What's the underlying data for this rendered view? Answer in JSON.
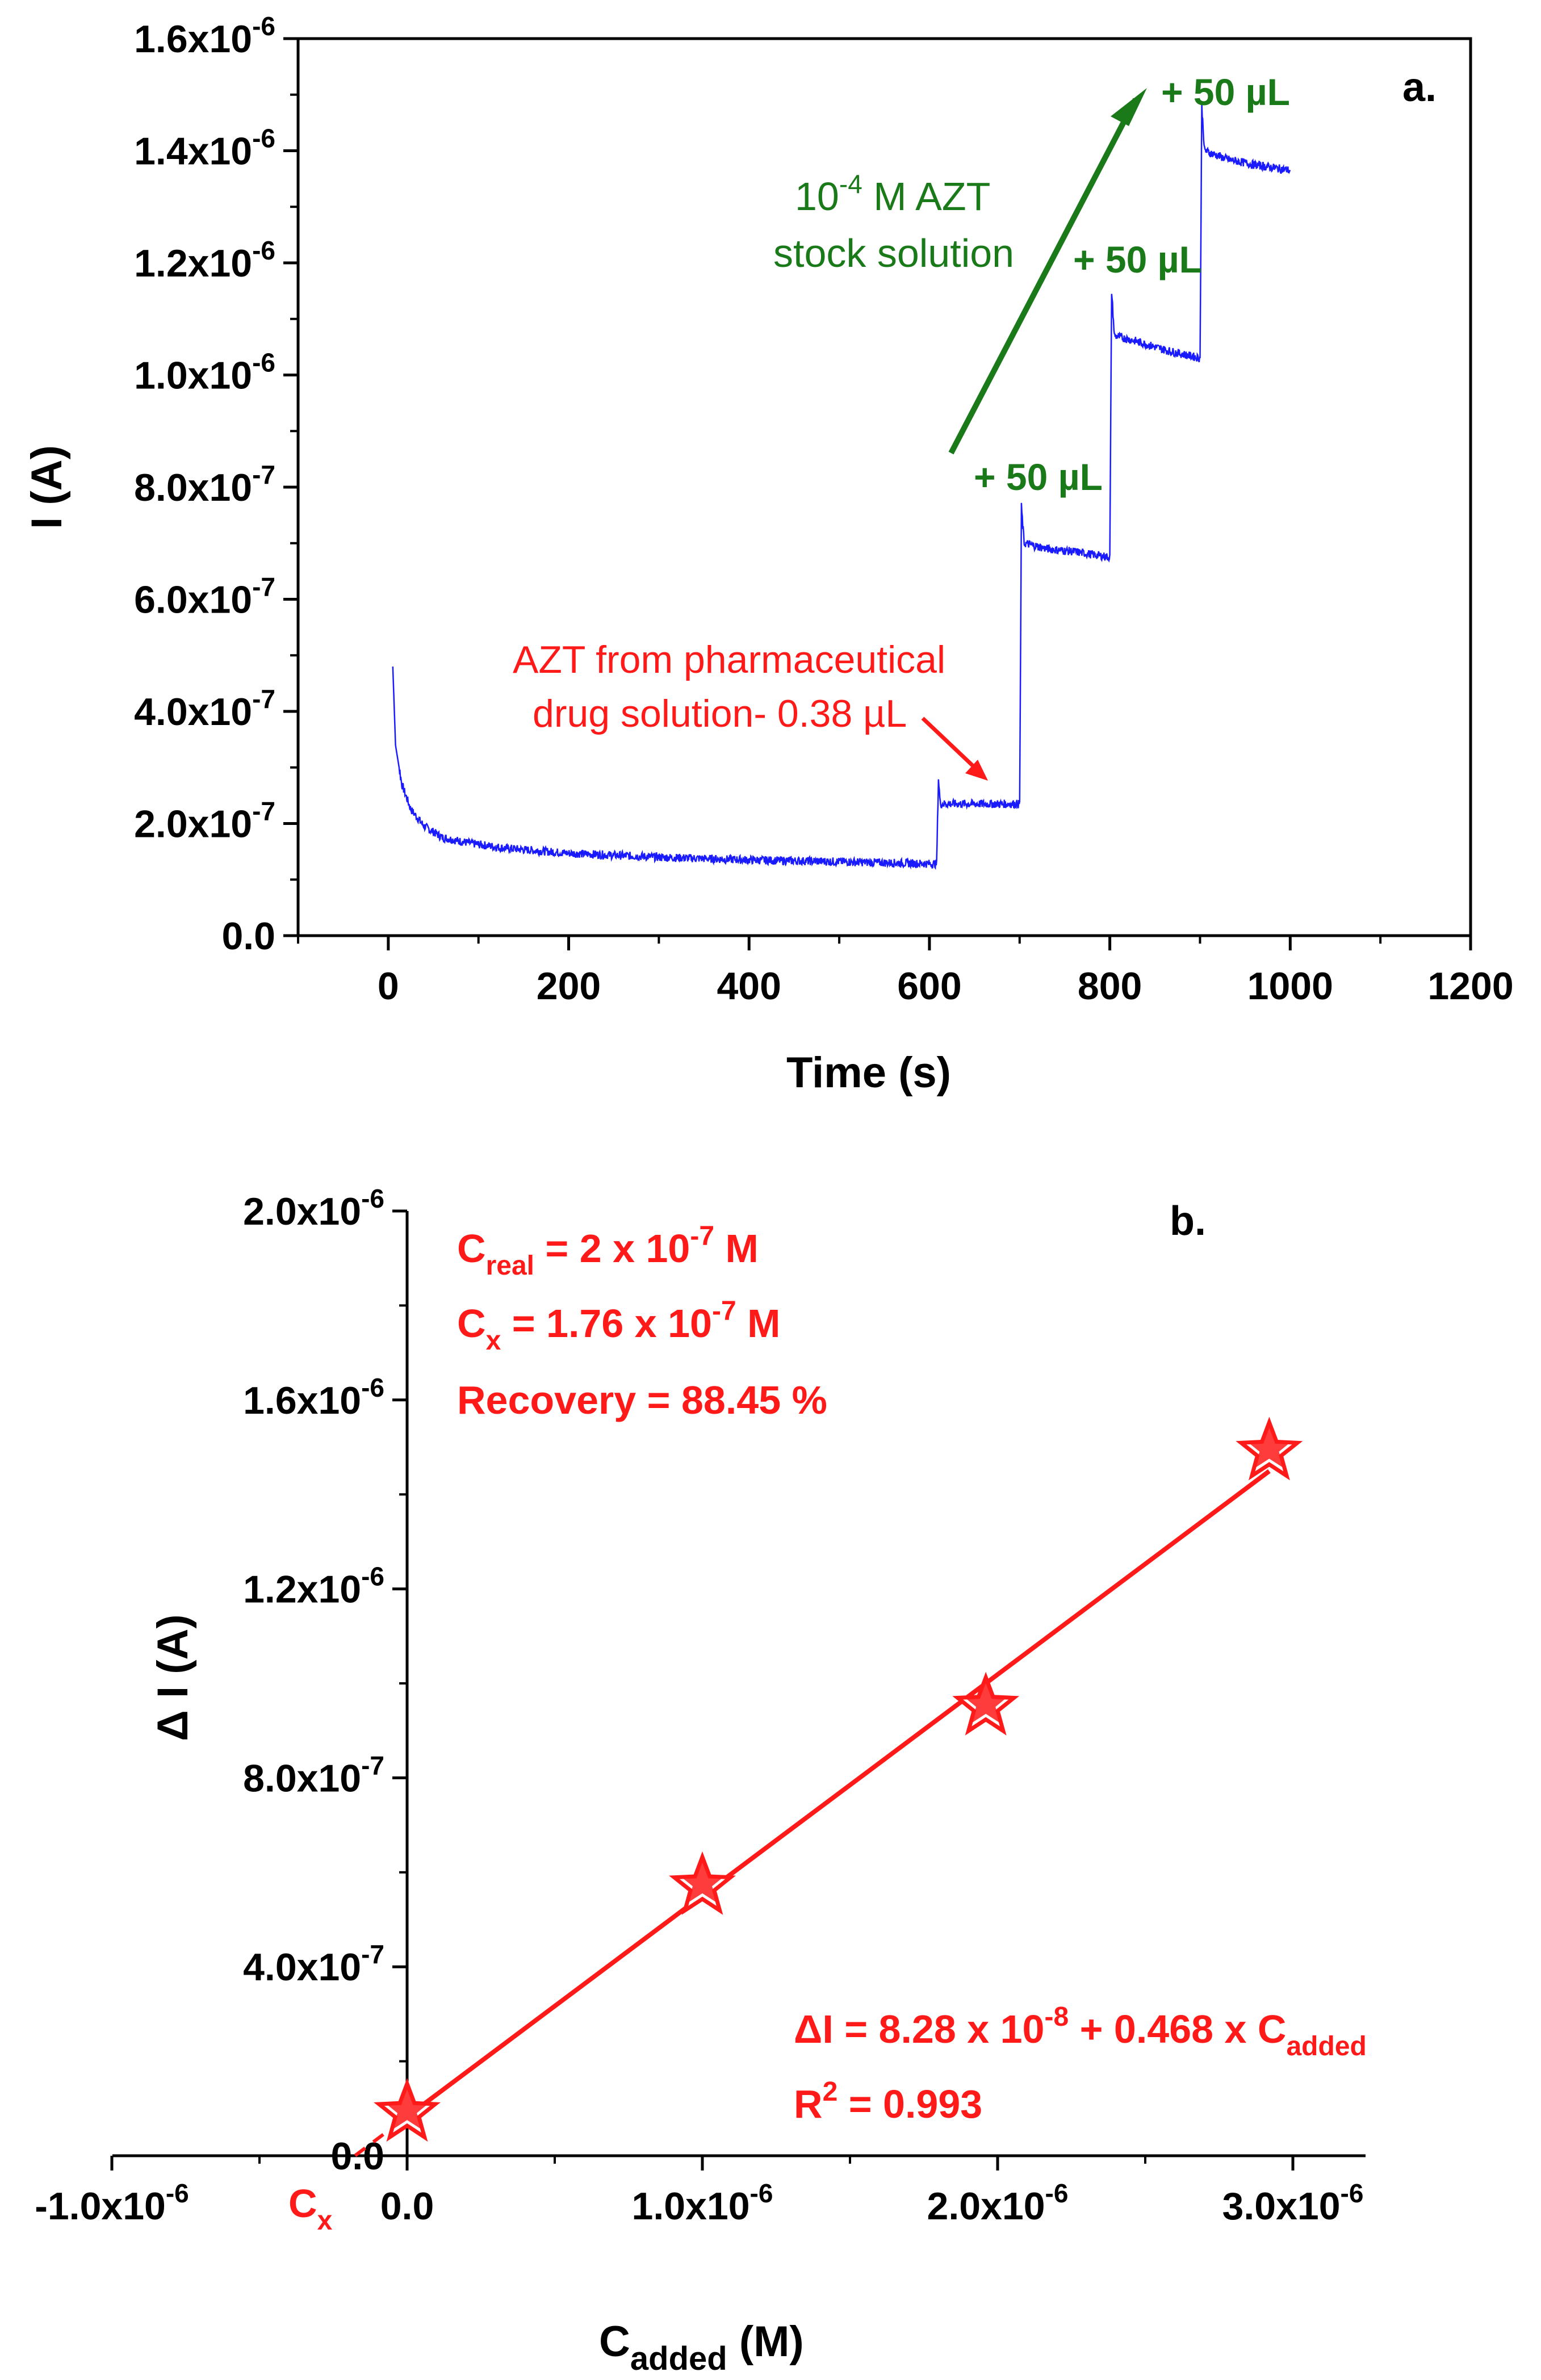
{
  "colors": {
    "trace": "#1a1aff",
    "green": "#1a7a1a",
    "red": "#ff1a1a",
    "axis": "#000000"
  },
  "chart_data": [
    {
      "type": "line",
      "panel_label": "a.",
      "xlabel": "Time (s)",
      "ylabel": "I (A)",
      "xlim": [
        -100,
        1200
      ],
      "ylim": [
        0,
        1.6e-06
      ],
      "xticks": [
        0,
        200,
        400,
        600,
        800,
        1000,
        1200
      ],
      "xtick_labels": [
        "0",
        "200",
        "400",
        "600",
        "800",
        "1000",
        "1200"
      ],
      "yticks": [
        0,
        2e-07,
        4e-07,
        6e-07,
        8e-07,
        1e-06,
        1.2e-06,
        1.4e-06,
        1.6e-06
      ],
      "ytick_labels": [
        {
          "base": "0.0",
          "exp": ""
        },
        {
          "base": "2.0x10",
          "exp": "-7"
        },
        {
          "base": "4.0x10",
          "exp": "-7"
        },
        {
          "base": "6.0x10",
          "exp": "-7"
        },
        {
          "base": "8.0x10",
          "exp": "-7"
        },
        {
          "base": "1.0x10",
          "exp": "-6"
        },
        {
          "base": "1.2x10",
          "exp": "-6"
        },
        {
          "base": "1.4x10",
          "exp": "-6"
        },
        {
          "base": "1.6x10",
          "exp": "-6"
        }
      ],
      "series": [
        {
          "name": "amperometric current",
          "x": [
            5,
            8,
            15,
            25,
            40,
            60,
            90,
            130,
            200,
            300,
            400,
            500,
            608,
            610,
            612,
            620,
            650,
            700,
            702,
            705,
            730,
            760,
            800,
            802,
            805,
            830,
            860,
            900,
            902,
            905,
            930,
            960,
            1000
          ],
          "y": [
            4.8e-07,
            3.4e-07,
            2.7e-07,
            2.25e-07,
            1.95e-07,
            1.75e-07,
            1.65e-07,
            1.56e-07,
            1.47e-07,
            1.4e-07,
            1.35e-07,
            1.32e-07,
            1.28e-07,
            2.8e-07,
            2.35e-07,
            2.35e-07,
            2.35e-07,
            2.35e-07,
            7.65e-07,
            7e-07,
            6.9e-07,
            6.85e-07,
            6.75e-07,
            1.15e-06,
            1.07e-06,
            1.06e-06,
            1.045e-06,
            1.03e-06,
            1.48e-06,
            1.4e-06,
            1.385e-06,
            1.375e-06,
            1.365e-06
          ]
        }
      ],
      "annotations": {
        "stock_line1_base": "10",
        "stock_line1_exp": "-4",
        "stock_line1_rest": " M AZT",
        "stock_line2": "stock solution",
        "add_label": "+ 50 µL",
        "pharma_line1": "AZT from pharmaceutical",
        "pharma_line2": "drug solution- 0.38 µL"
      }
    },
    {
      "type": "scatter",
      "panel_label": "b.",
      "xlabel_base": "C",
      "xlabel_sub": "added",
      "xlabel_rest": " (M)",
      "ylabel": "Δ I (A)",
      "xlim": [
        -1e-06,
        3.25e-06
      ],
      "ylim": [
        0,
        2e-06
      ],
      "xticks": [
        -1e-06,
        0,
        1e-06,
        2e-06,
        3e-06
      ],
      "xtick_labels": [
        {
          "base": "-1.0x10",
          "exp": "-6"
        },
        {
          "base": "0.0",
          "exp": ""
        },
        {
          "base": "1.0x10",
          "exp": "-6"
        },
        {
          "base": "2.0x10",
          "exp": "-6"
        },
        {
          "base": "3.0x10",
          "exp": "-6"
        }
      ],
      "yticks": [
        0,
        4e-07,
        8e-07,
        1.2e-06,
        1.6e-06,
        2e-06
      ],
      "ytick_labels": [
        {
          "base": "0.0",
          "exp": ""
        },
        {
          "base": "4.0x10",
          "exp": "-7"
        },
        {
          "base": "8.0x10",
          "exp": "-7"
        },
        {
          "base": "1.2x10",
          "exp": "-6"
        },
        {
          "base": "1.6x10",
          "exp": "-6"
        },
        {
          "base": "2.0x10",
          "exp": "-6"
        }
      ],
      "points": {
        "x": [
          0,
          1e-06,
          1.96e-06,
          2.92e-06
        ],
        "y": [
          9e-08,
          5.7e-07,
          9.5e-07,
          1.49e-06
        ]
      },
      "fit": {
        "intercept": 8.28e-08,
        "slope": 0.468,
        "x_start": 0,
        "x_end": 2.92e-06,
        "extrap_x_start": -1.76e-07
      },
      "cx_marker": "C",
      "cx_marker_sub": "x",
      "annotations": {
        "creal_base": "C",
        "creal_sub": "real",
        "creal_rest": " = 2 x 10",
        "creal_exp": "-7",
        "creal_unit": " M",
        "cx_base": "C",
        "cx_sub": "x",
        "cx_rest": " = 1.76 x 10",
        "cx_exp": "-7",
        "cx_unit": " M",
        "recovery": "Recovery = 88.45 %",
        "eq_pre": "ΔI = 8.28 x 10",
        "eq_exp": "-8",
        "eq_mid": " + 0.468 x C",
        "eq_sub": "added",
        "r2_base": "R",
        "r2_exp": "2",
        "r2_rest": " = 0.993"
      }
    }
  ]
}
